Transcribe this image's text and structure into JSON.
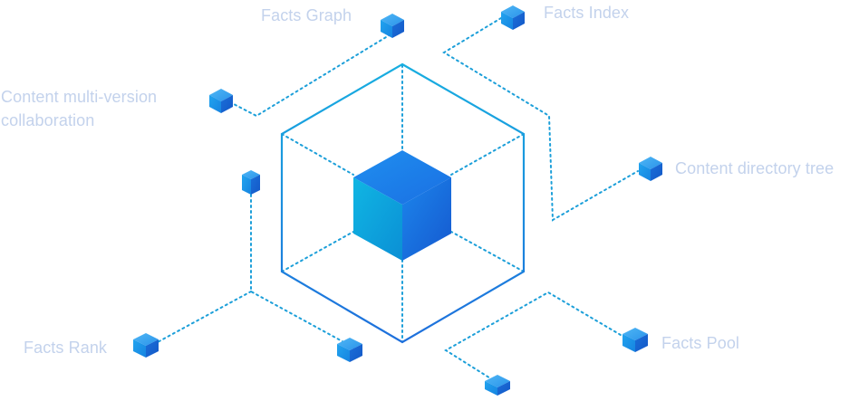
{
  "labels": {
    "facts_graph": "Facts Graph",
    "facts_index": "Facts Index",
    "content_multi_version": "Content multi-version collaboration",
    "content_directory_tree": "Content directory tree",
    "facts_rank": "Facts Rank",
    "facts_pool": "Facts Pool"
  },
  "colors": {
    "label_text": "#c3d2ec",
    "hexagon_stroke_top": "#1aa8e0",
    "hexagon_stroke_bottom": "#1e73dd",
    "dotted_line": "#1c9fd9",
    "cube_left_face": "#0aa8dc",
    "cube_right_face": "#1a70de",
    "cube_top_face": "#1d7fe6"
  },
  "icons": {
    "node_shape": "small-cube-icon",
    "center_shape": "large-cube-icon"
  }
}
